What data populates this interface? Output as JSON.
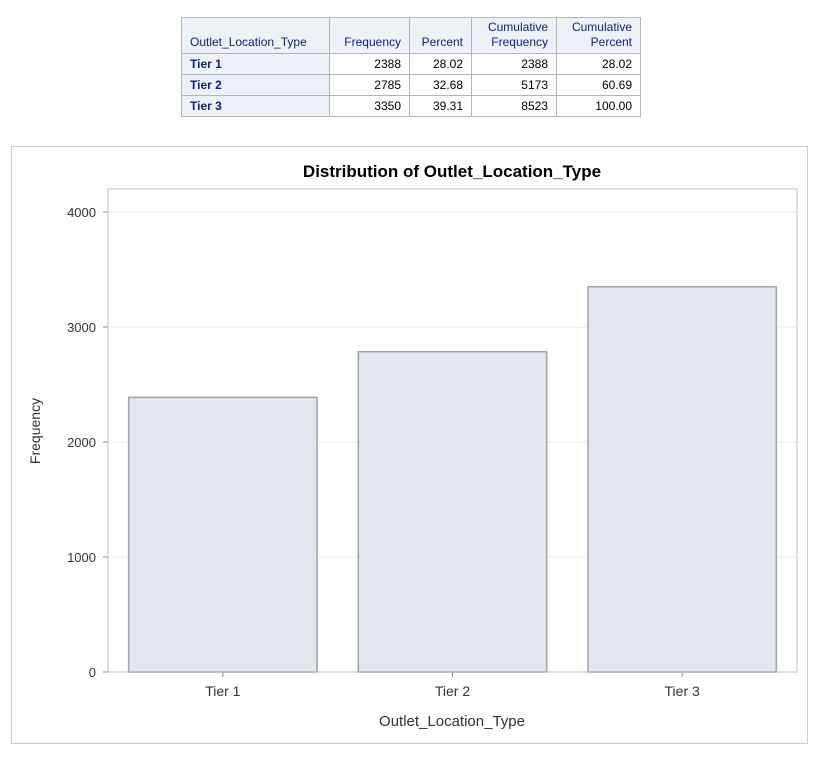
{
  "table": {
    "headers": [
      "Outlet_Location_Type",
      "Frequency",
      "Percent",
      "Cumulative Frequency",
      "Cumulative Percent"
    ],
    "rows": [
      {
        "label": "Tier 1",
        "frequency": "2388",
        "percent": "28.02",
        "cum_frequency": "2388",
        "cum_percent": "28.02"
      },
      {
        "label": "Tier 2",
        "frequency": "2785",
        "percent": "32.68",
        "cum_frequency": "5173",
        "cum_percent": "60.69"
      },
      {
        "label": "Tier 3",
        "frequency": "3350",
        "percent": "39.31",
        "cum_frequency": "8523",
        "cum_percent": "100.00"
      }
    ]
  },
  "chart_data": {
    "type": "bar",
    "title": "Distribution of Outlet_Location_Type",
    "xlabel": "Outlet_Location_Type",
    "ylabel": "Frequency",
    "categories": [
      "Tier 1",
      "Tier 2",
      "Tier 3"
    ],
    "values": [
      2388,
      2785,
      3350
    ],
    "yticks": [
      0,
      1000,
      2000,
      3000,
      4000
    ],
    "ylim": [
      0,
      4200
    ],
    "grid": true,
    "colors": {
      "bar_fill": "#e3e8f0",
      "bar_stroke": "#a3a6aa",
      "grid": "#ebebeb",
      "frame": "#bcbcbc"
    }
  }
}
